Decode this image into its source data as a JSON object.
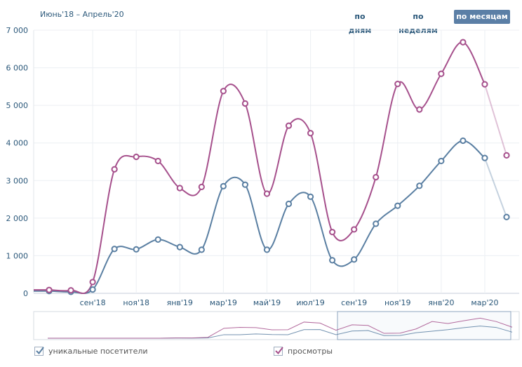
{
  "header": {
    "period_label": "Июнь'18 – Апрель'20",
    "tabs": [
      {
        "label": "по дням",
        "active": false
      },
      {
        "label": "по неделям",
        "active": false
      },
      {
        "label": "по месяцам",
        "active": true
      }
    ]
  },
  "legend": {
    "items": [
      {
        "label": "уникальные посетители",
        "color": "#5a7fa2",
        "checked": true
      },
      {
        "label": "просмотры",
        "color": "#a6508c",
        "checked": true
      }
    ]
  },
  "chart_data": {
    "type": "line",
    "x": [
      "Jul'18",
      "Aug'18",
      "Sep'18",
      "Oct'18",
      "Nov'18",
      "Dec'18",
      "Jan'19",
      "Feb'19",
      "Mar'19",
      "Apr'19",
      "May'19",
      "Jun'19",
      "Jul'19",
      "Aug'19",
      "Sep'19",
      "Oct'19",
      "Nov'19",
      "Dec'19",
      "Jan'20",
      "Feb'20",
      "Mar'20",
      "Apr'20"
    ],
    "xtick_labels": [
      {
        "index": 2,
        "label": "сен'18"
      },
      {
        "index": 4,
        "label": "ноя'18"
      },
      {
        "index": 6,
        "label": "янв'19"
      },
      {
        "index": 8,
        "label": "мар'19"
      },
      {
        "index": 10,
        "label": "май'19"
      },
      {
        "index": 12,
        "label": "июл'19"
      },
      {
        "index": 14,
        "label": "сен'19"
      },
      {
        "index": 16,
        "label": "ноя'19"
      },
      {
        "index": 18,
        "label": "янв'20"
      },
      {
        "index": 20,
        "label": "мар'20"
      }
    ],
    "ytick_labels": [
      "0",
      "1 000",
      "2 000",
      "3 000",
      "4 000",
      "5 000",
      "6 000",
      "7 000"
    ],
    "ylim": [
      0,
      7000
    ],
    "grid": true,
    "legend_position": "bottom",
    "series": [
      {
        "name": "уникальные посетители",
        "color": "#5a7fa2",
        "values": [
          60,
          40,
          100,
          1180,
          1170,
          1430,
          1230,
          1160,
          2850,
          2890,
          1160,
          2380,
          2570,
          880,
          900,
          1850,
          2330,
          2860,
          3520,
          4060,
          3600,
          2030
        ]
      },
      {
        "name": "просмотры",
        "color": "#a6508c",
        "values": [
          90,
          80,
          300,
          3300,
          3630,
          3520,
          2800,
          2830,
          5380,
          5050,
          2650,
          4460,
          4260,
          1630,
          1700,
          3090,
          5570,
          4890,
          5840,
          6680,
          5560,
          3670
        ]
      }
    ]
  }
}
